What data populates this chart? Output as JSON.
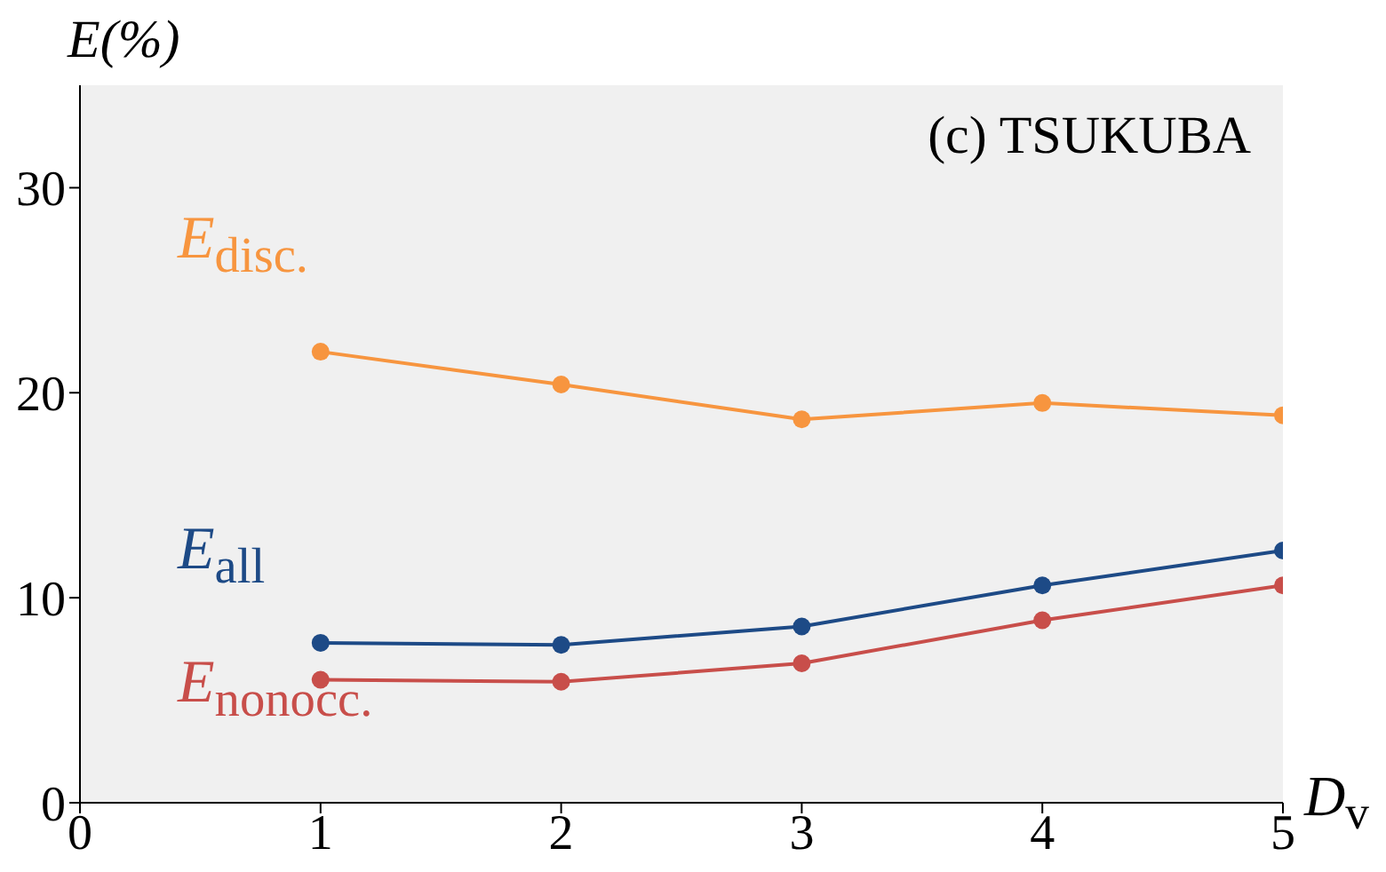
{
  "chart_data": {
    "type": "line",
    "title": "(c) TSUKUBA",
    "xlabel": "D$_{v}$",
    "ylabel": "E(%)",
    "x": [
      1,
      2,
      3,
      4,
      5
    ],
    "series": [
      {
        "name": "E$_{disc.}$",
        "color": "#f7953f",
        "values": [
          22.0,
          20.4,
          18.7,
          19.5,
          18.9
        ]
      },
      {
        "name": "E$_{all}$",
        "color": "#1d4a86",
        "values": [
          7.8,
          7.7,
          8.6,
          10.6,
          12.3
        ]
      },
      {
        "name": "E$_{nonocc.}$",
        "color": "#c84e4a",
        "values": [
          6.0,
          5.9,
          6.8,
          8.9,
          10.6
        ]
      }
    ],
    "xlim": [
      0,
      5
    ],
    "xticks": [
      0,
      1,
      2,
      3,
      4,
      5
    ],
    "ylim": [
      0,
      35
    ],
    "yticks": [
      0,
      10,
      20,
      30
    ],
    "marker": "circle",
    "line_style": "solid",
    "grid": false
  }
}
